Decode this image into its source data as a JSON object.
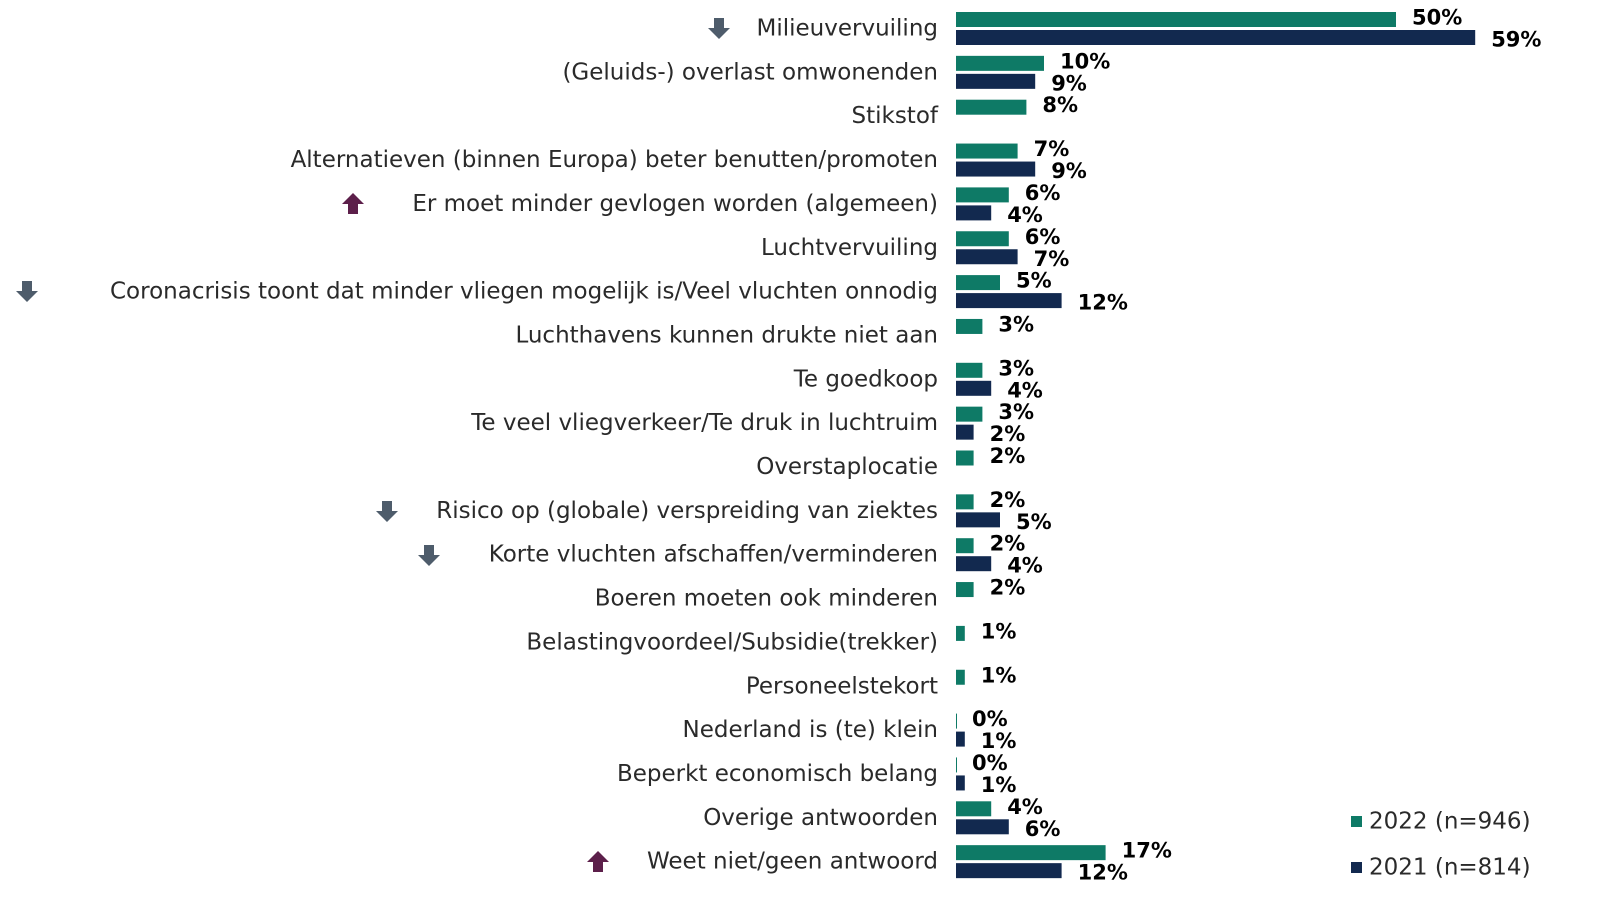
{
  "chart_data": {
    "type": "hbar",
    "categories": [
      "Milieuvervuiling",
      "(Geluids-) overlast omwonenden",
      "Stikstof",
      "Alternatieven (binnen Europa) beter benutten/promoten",
      "Er moet minder gevlogen worden (algemeen)",
      "Luchtvervuiling",
      "Coronacrisis toont dat minder vliegen mogelijk is/Veel vluchten onnodig",
      "Luchthavens kunnen drukte niet aan",
      "Te goedkoop",
      "Te veel vliegverkeer/Te druk in luchtruim",
      "Overstaplocatie",
      "Risico op (globale) verspreiding van ziektes",
      "Korte vluchten afschaffen/verminderen",
      "Boeren moeten ook minderen",
      "Belastingvoordeel/Subsidie(trekker)",
      "Personeelstekort",
      "Nederland is (te) klein",
      "Beperkt economisch belang",
      "Overige antwoorden",
      "Weet niet/geen antwoord"
    ],
    "series": [
      {
        "name": "2022  (n=946)",
        "color": "#0e7a66",
        "values": [
          50,
          10,
          8,
          7,
          6,
          6,
          5,
          3,
          3,
          3,
          2,
          2,
          2,
          2,
          1,
          1,
          0,
          0,
          4,
          17
        ],
        "value_labels": [
          "50%",
          "10%",
          "8%",
          "7%",
          "6%",
          "6%",
          "5%",
          "3%",
          "3%",
          "3%",
          "2%",
          "2%",
          "2%",
          "2%",
          "1%",
          "1%",
          "0%",
          "0%",
          "4%",
          "17%"
        ]
      },
      {
        "name": "2021  (n=814)",
        "color": "#12294f",
        "values": [
          59,
          9,
          null,
          9,
          4,
          7,
          12,
          null,
          4,
          2,
          null,
          5,
          4,
          null,
          null,
          null,
          1,
          1,
          6,
          12
        ],
        "value_labels": [
          "59%",
          "9%",
          null,
          "9%",
          "4%",
          "7%",
          "12%",
          null,
          "4%",
          "2%",
          null,
          "5%",
          "4%",
          null,
          null,
          null,
          "1%",
          "1%",
          "6%",
          "12%"
        ]
      }
    ]
  }
}
